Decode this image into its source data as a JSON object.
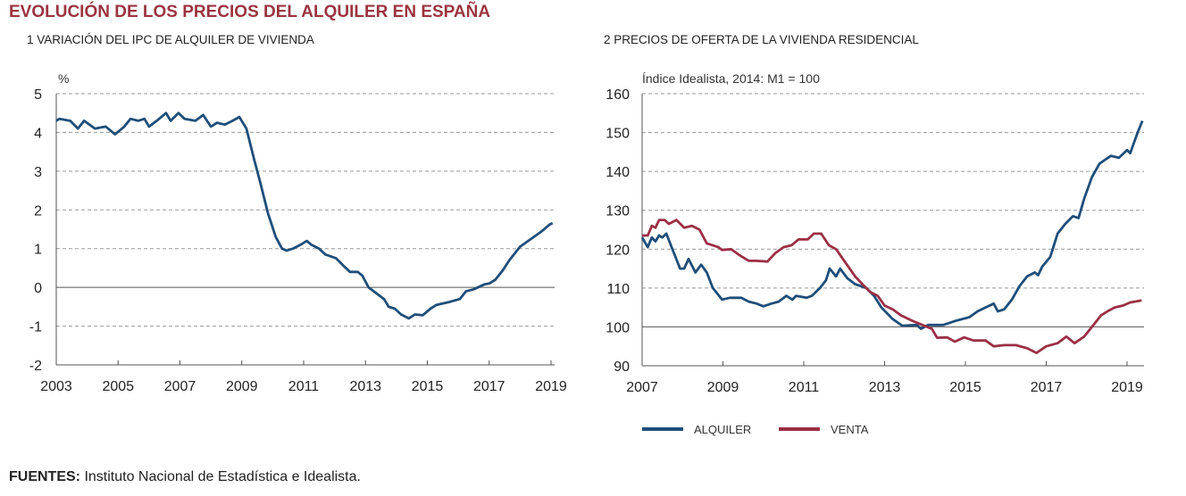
{
  "title": "EVOLUCIÓN DE LOS PRECIOS DEL ALQUILER EN ESPAÑA",
  "footer": {
    "label": "FUENTES:",
    "text": "Instituto Nacional de Estadística e Idealista."
  },
  "colors": {
    "title": "#9b3440",
    "alquiler": "#1f4e79",
    "venta": "#9b2f45",
    "grid": "#999999"
  },
  "chart_data": [
    {
      "type": "line",
      "title": "1  VARIACIÓN DEL IPC DE ALQUILER DE VIVIENDA",
      "ylabel": "%",
      "xlim": [
        2003,
        2019
      ],
      "ylim": [
        -2,
        5
      ],
      "xticks": [
        "2003",
        "2005",
        "2007",
        "2009",
        "2011",
        "2013",
        "2015",
        "2017",
        "2019"
      ],
      "yticks": [
        "5",
        "4",
        "3",
        "2",
        "1",
        "0",
        "-1",
        "-2"
      ],
      "grid": "horizontal dashed",
      "series": [
        {
          "color": "#1f4e79",
          "x": [
            2003.0,
            2003.1,
            2003.45,
            2003.7,
            2003.9,
            2004.25,
            2004.6,
            2004.9,
            2005.2,
            2005.4,
            2005.65,
            2005.85,
            2006.0,
            2006.25,
            2006.55,
            2006.7,
            2006.95,
            2007.15,
            2007.5,
            2007.75,
            2008.0,
            2008.2,
            2008.45,
            2008.7,
            2008.92,
            2009.15,
            2009.4,
            2009.6,
            2009.85,
            2010.1,
            2010.3,
            2010.45,
            2010.65,
            2010.9,
            2011.1,
            2011.25,
            2011.5,
            2011.7,
            2012.05,
            2012.3,
            2012.5,
            2012.75,
            2012.9,
            2013.1,
            2013.35,
            2013.6,
            2013.75,
            2013.95,
            2014.15,
            2014.4,
            2014.6,
            2014.85,
            2015.1,
            2015.3,
            2015.7,
            2016.05,
            2016.25,
            2016.5,
            2016.85,
            2017.0,
            2017.2,
            2017.45,
            2017.65,
            2018.0,
            2018.35,
            2018.7,
            2018.95,
            2019.05
          ],
          "y": [
            4.3,
            4.35,
            4.3,
            4.1,
            4.3,
            4.1,
            4.15,
            3.95,
            4.15,
            4.35,
            4.3,
            4.35,
            4.15,
            4.3,
            4.5,
            4.3,
            4.5,
            4.35,
            4.3,
            4.45,
            4.15,
            4.25,
            4.2,
            4.3,
            4.4,
            4.1,
            3.3,
            2.7,
            1.9,
            1.3,
            1.0,
            0.95,
            1.0,
            1.1,
            1.2,
            1.1,
            1.0,
            0.85,
            0.75,
            0.55,
            0.4,
            0.4,
            0.3,
            0.0,
            -0.15,
            -0.3,
            -0.5,
            -0.55,
            -0.7,
            -0.8,
            -0.7,
            -0.72,
            -0.55,
            -0.45,
            -0.38,
            -0.3,
            -0.1,
            -0.05,
            0.08,
            0.1,
            0.2,
            0.45,
            0.7,
            1.05,
            1.25,
            1.45,
            1.62,
            1.66
          ]
        }
      ]
    },
    {
      "type": "line",
      "title": "2  PRECIOS DE OFERTA DE LA VIVIENDA RESIDENCIAL",
      "ylabel": "Índice Idealista, 2014: M1 = 100",
      "xlim": [
        2007,
        2019.4
      ],
      "ylim": [
        90,
        160
      ],
      "xticks": [
        "2007",
        "2009",
        "2011",
        "2013",
        "2015",
        "2017",
        "2019"
      ],
      "yticks": [
        "160",
        "150",
        "140",
        "130",
        "120",
        "110",
        "100",
        "90"
      ],
      "grid": "horizontal dashed",
      "legend": "bottom",
      "series": [
        {
          "name": "ALQUILER",
          "color": "#1f4e79",
          "x": [
            2007.0,
            2007.14,
            2007.24,
            2007.33,
            2007.42,
            2007.5,
            2007.6,
            2007.75,
            2007.94,
            2008.04,
            2008.15,
            2008.32,
            2008.46,
            2008.6,
            2008.75,
            2008.98,
            2009.17,
            2009.45,
            2009.64,
            2009.83,
            2010.0,
            2010.2,
            2010.38,
            2010.57,
            2010.72,
            2010.81,
            2011.07,
            2011.2,
            2011.4,
            2011.55,
            2011.64,
            2011.8,
            2011.9,
            2012.08,
            2012.27,
            2012.55,
            2012.74,
            2012.92,
            2013.2,
            2013.44,
            2013.8,
            2013.9,
            2014.08,
            2014.45,
            2014.74,
            2014.92,
            2015.1,
            2015.3,
            2015.5,
            2015.7,
            2015.8,
            2015.96,
            2016.15,
            2016.34,
            2016.53,
            2016.72,
            2016.8,
            2016.9,
            2017.1,
            2017.28,
            2017.47,
            2017.66,
            2017.8,
            2017.94,
            2018.13,
            2018.32,
            2018.6,
            2018.8,
            2019.0,
            2019.08,
            2019.26,
            2019.38
          ],
          "y": [
            123,
            120.5,
            123,
            122,
            123.5,
            123,
            124,
            120,
            115,
            115,
            117.5,
            114,
            116,
            114,
            110,
            107,
            107.5,
            107.5,
            106.5,
            106,
            105.3,
            106,
            106.5,
            108,
            107,
            108,
            107.5,
            108,
            110,
            112,
            115,
            113,
            115,
            112.5,
            111,
            110,
            108,
            105,
            102,
            100.3,
            100.5,
            99.5,
            100.5,
            100.5,
            101.5,
            102,
            102.5,
            104,
            105,
            106,
            104,
            104.5,
            107,
            110.5,
            113,
            114,
            113.3,
            115.5,
            118,
            124,
            126.5,
            128.5,
            128,
            133,
            138.5,
            142,
            144,
            143.5,
            145.5,
            144.7,
            150,
            153
          ]
        },
        {
          "name": "VENTA",
          "color": "#9b2f45",
          "x": [
            2007.0,
            2007.14,
            2007.24,
            2007.33,
            2007.42,
            2007.56,
            2007.66,
            2007.85,
            2008.04,
            2008.23,
            2008.42,
            2008.6,
            2008.89,
            2008.98,
            2009.2,
            2009.4,
            2009.64,
            2009.83,
            2010.1,
            2010.3,
            2010.5,
            2010.7,
            2010.87,
            2011.1,
            2011.25,
            2011.43,
            2011.62,
            2011.8,
            2012.0,
            2012.27,
            2012.45,
            2012.64,
            2012.83,
            2013.0,
            2013.2,
            2013.4,
            2013.7,
            2013.98,
            2014.17,
            2014.3,
            2014.55,
            2014.74,
            2014.97,
            2015.2,
            2015.5,
            2015.7,
            2015.96,
            2016.25,
            2016.53,
            2016.76,
            2017.0,
            2017.28,
            2017.5,
            2017.7,
            2017.94,
            2018.17,
            2018.36,
            2018.55,
            2018.7,
            2018.9,
            2019.08,
            2019.36
          ],
          "y": [
            123.5,
            123.5,
            126,
            125.5,
            127.5,
            127.5,
            126.5,
            127.5,
            125.5,
            126,
            125,
            121.5,
            120.5,
            119.8,
            120,
            118.5,
            117,
            117,
            116.8,
            119,
            120.5,
            121,
            122.5,
            122.5,
            124,
            124,
            121,
            120,
            117,
            113,
            111,
            109,
            108,
            105.5,
            104.5,
            103,
            101.5,
            100.3,
            99.5,
            97.2,
            97.3,
            96.2,
            97.3,
            96.5,
            96.5,
            95,
            95.3,
            95.3,
            94.5,
            93.3,
            95,
            95.8,
            97.5,
            95.8,
            97.5,
            100.5,
            103,
            104.2,
            105,
            105.5,
            106.3,
            106.8
          ]
        }
      ]
    }
  ]
}
